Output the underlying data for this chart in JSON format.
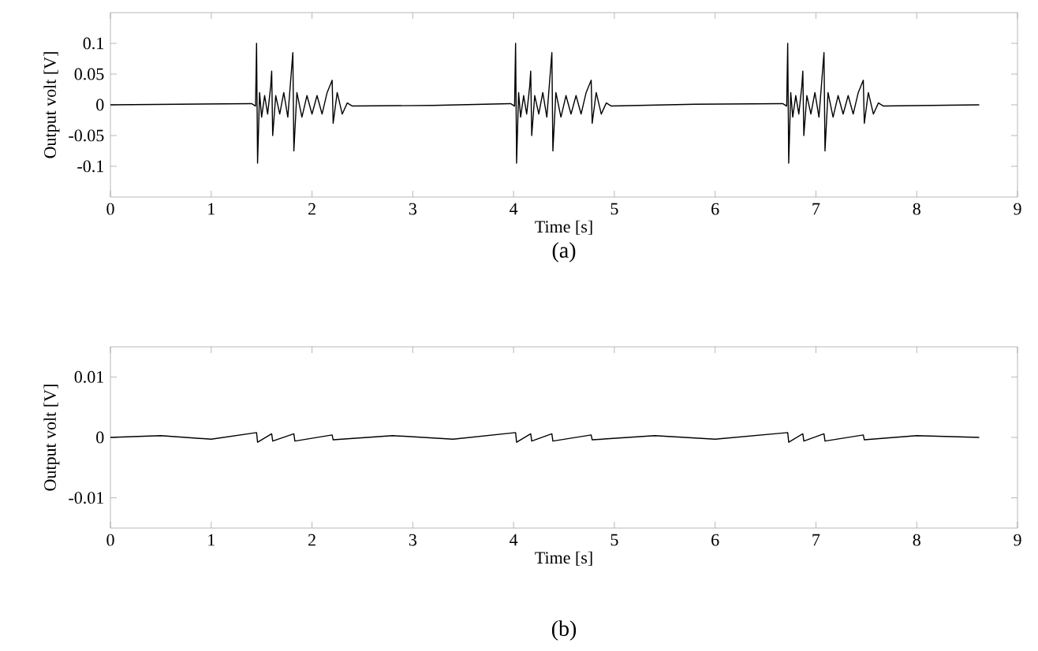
{
  "chart_data": [
    {
      "type": "line",
      "xlabel": "Time [s]",
      "ylabel": "Output volt  [V]",
      "annotations": [
        "(a)"
      ],
      "xlim": [
        0,
        9
      ],
      "ylim": [
        -0.15,
        0.15
      ],
      "xticks": [
        0,
        1,
        2,
        3,
        4,
        5,
        6,
        7,
        8,
        9
      ],
      "yticks": [
        -0.1,
        -0.05,
        0,
        0.05,
        0.1
      ],
      "series": [
        {
          "color": "#000000",
          "x": [
            0,
            0.7,
            1.4,
            1.44,
            1.45,
            1.46,
            1.48,
            1.5,
            1.53,
            1.56,
            1.59,
            1.6,
            1.61,
            1.64,
            1.68,
            1.72,
            1.76,
            1.81,
            1.82,
            1.85,
            1.9,
            1.95,
            2.0,
            2.05,
            2.1,
            2.15,
            2.2,
            2.21,
            2.25,
            2.3,
            2.35,
            2.4,
            3.2,
            3.97,
            4.01,
            4.02,
            4.03,
            4.05,
            4.07,
            4.1,
            4.13,
            4.16,
            4.17,
            4.18,
            4.21,
            4.25,
            4.29,
            4.33,
            4.38,
            4.39,
            4.42,
            4.47,
            4.52,
            4.57,
            4.62,
            4.67,
            4.72,
            4.77,
            4.78,
            4.82,
            4.87,
            4.92,
            4.97,
            5.8,
            6.67,
            6.71,
            6.72,
            6.73,
            6.75,
            6.77,
            6.8,
            6.83,
            6.86,
            6.87,
            6.88,
            6.91,
            6.95,
            6.99,
            7.03,
            7.08,
            7.09,
            7.12,
            7.17,
            7.22,
            7.27,
            7.32,
            7.37,
            7.42,
            7.47,
            7.48,
            7.52,
            7.57,
            7.62,
            7.67,
            8.62
          ],
          "values": [
            0,
            0.001,
            0.002,
            -0.002,
            0.1,
            -0.095,
            0.02,
            -0.02,
            0.015,
            -0.015,
            0.03,
            0.055,
            -0.05,
            0.015,
            -0.015,
            0.02,
            -0.02,
            0.085,
            -0.075,
            0.02,
            -0.02,
            0.015,
            -0.015,
            0.015,
            -0.015,
            0.02,
            0.04,
            -0.03,
            0.02,
            -0.015,
            0.003,
            -0.002,
            -0.001,
            0.002,
            -0.002,
            0.1,
            -0.095,
            0.02,
            -0.02,
            0.015,
            -0.015,
            0.03,
            0.055,
            -0.05,
            0.015,
            -0.015,
            0.02,
            -0.02,
            0.085,
            -0.075,
            0.02,
            -0.02,
            0.015,
            -0.015,
            0.015,
            -0.015,
            0.02,
            0.04,
            -0.03,
            0.02,
            -0.015,
            0.003,
            -0.002,
            0.001,
            0.002,
            -0.002,
            0.1,
            -0.095,
            0.02,
            -0.02,
            0.015,
            -0.015,
            0.03,
            0.055,
            -0.05,
            0.015,
            -0.015,
            0.02,
            -0.02,
            0.085,
            -0.075,
            0.02,
            -0.02,
            0.015,
            -0.015,
            0.015,
            -0.015,
            0.02,
            0.04,
            -0.03,
            0.02,
            -0.015,
            0.003,
            -0.002,
            0
          ]
        }
      ]
    },
    {
      "type": "line",
      "xlabel": "Time [s]",
      "ylabel": "Output volt  [V]",
      "annotations": [
        "(b)"
      ],
      "xlim": [
        0,
        9
      ],
      "ylim": [
        -0.015,
        0.015
      ],
      "xticks": [
        0,
        1,
        2,
        3,
        4,
        5,
        6,
        7,
        8,
        9
      ],
      "yticks": [
        -0.01,
        0,
        0.01
      ],
      "series": [
        {
          "color": "#000000",
          "x": [
            0,
            0.5,
            1.0,
            1.45,
            1.46,
            1.6,
            1.61,
            1.82,
            1.83,
            2.2,
            2.21,
            2.8,
            3.4,
            4.02,
            4.03,
            4.17,
            4.18,
            4.38,
            4.39,
            4.77,
            4.78,
            5.4,
            6.0,
            6.72,
            6.73,
            6.87,
            6.88,
            7.08,
            7.09,
            7.47,
            7.48,
            8.0,
            8.62
          ],
          "values": [
            0,
            0.0003,
            -0.0003,
            0.0008,
            -0.0008,
            0.0006,
            -0.0006,
            0.0006,
            -0.0006,
            0.0004,
            -0.0004,
            0.0003,
            -0.0003,
            0.0008,
            -0.0008,
            0.0006,
            -0.0006,
            0.0006,
            -0.0006,
            0.0004,
            -0.0004,
            0.0003,
            -0.0003,
            0.0008,
            -0.0008,
            0.0006,
            -0.0006,
            0.0006,
            -0.0006,
            0.0004,
            -0.0004,
            0.0003,
            0
          ]
        }
      ]
    }
  ]
}
